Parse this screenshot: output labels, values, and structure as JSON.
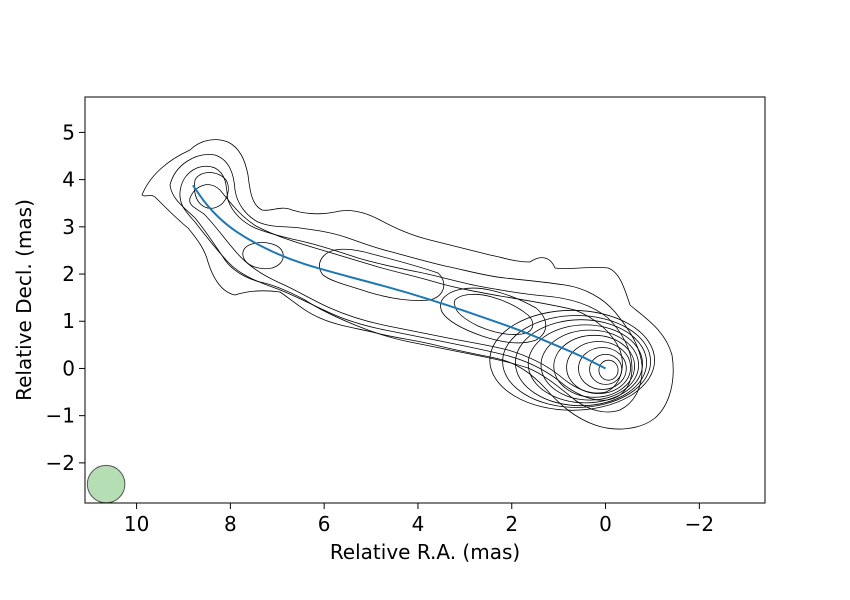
{
  "chart_data": {
    "type": "contour",
    "xlabel": "Relative R.A. (mas)",
    "ylabel": "Relative Decl. (mas)",
    "xlim": [
      11.1,
      -3.4
    ],
    "ylim": [
      -2.85,
      5.75
    ],
    "x_ticks": [
      10,
      8,
      6,
      4,
      2,
      0,
      -2
    ],
    "x_tick_labels": [
      "10",
      "8",
      "6",
      "4",
      "2",
      "0",
      "−2"
    ],
    "y_ticks": [
      5,
      4,
      3,
      2,
      1,
      0,
      -1,
      -2
    ],
    "y_tick_labels": [
      "5",
      "4",
      "3",
      "2",
      "1",
      "0",
      "−1",
      "−2"
    ],
    "grid": false,
    "jet_ridge_line": {
      "color": "#1f77b4",
      "x": [
        8.8,
        8.5,
        8.1,
        7.6,
        7.0,
        6.4,
        5.8,
        5.0,
        4.2,
        3.4,
        2.6,
        1.8,
        1.2,
        0.6,
        0.2,
        0.0
      ],
      "y": [
        3.88,
        3.45,
        3.05,
        2.72,
        2.42,
        2.2,
        2.03,
        1.82,
        1.6,
        1.35,
        1.08,
        0.8,
        0.55,
        0.3,
        0.1,
        0.0
      ]
    },
    "core_position": [
      0,
      0
    ],
    "contour_levels_count": 12,
    "contour_color": "#000000",
    "beam": {
      "center": [
        10.65,
        -2.45
      ],
      "diameter_mas": 0.8,
      "fill_color": "#2ca02c",
      "fill_opacity": 0.35
    }
  }
}
